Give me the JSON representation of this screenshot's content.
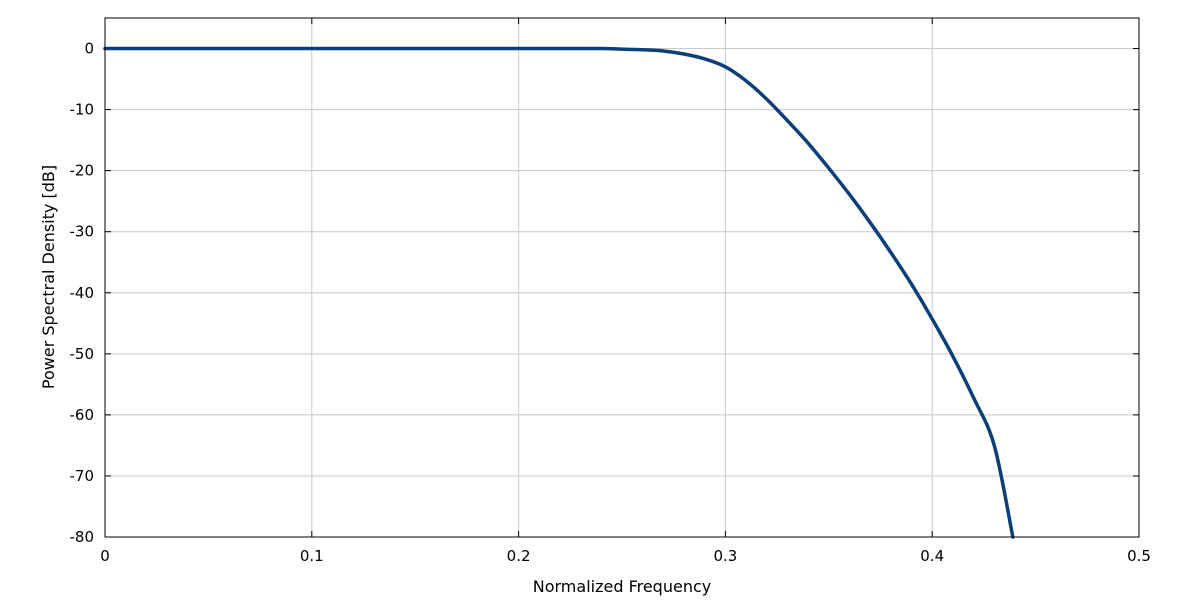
{
  "chart_data": {
    "type": "line",
    "title": "",
    "xlabel": "Normalized Frequency",
    "ylabel": "Power Spectral Density [dB]",
    "xlim": [
      0,
      0.5
    ],
    "ylim": [
      -80,
      5
    ],
    "grid": true,
    "x_ticks": [
      0,
      0.1,
      0.2,
      0.3,
      0.4,
      0.5
    ],
    "x_tick_labels": [
      "0",
      "0.1",
      "0.2",
      "0.3",
      "0.4",
      "0.5"
    ],
    "y_ticks": [
      0,
      -10,
      -20,
      -30,
      -40,
      -50,
      -60,
      -70,
      -80
    ],
    "y_tick_labels": [
      "0",
      "-10",
      "-20",
      "-30",
      "-40",
      "-50",
      "-60",
      "-70",
      "-80"
    ],
    "series": [
      {
        "color": "#0b3f7a",
        "x": [
          0,
          0.05,
          0.1,
          0.15,
          0.2,
          0.22,
          0.24,
          0.25,
          0.26,
          0.27,
          0.28,
          0.29,
          0.3,
          0.31,
          0.32,
          0.33,
          0.34,
          0.35,
          0.36,
          0.37,
          0.38,
          0.39,
          0.4,
          0.41,
          0.42,
          0.43,
          0.439
        ],
        "y": [
          0,
          0,
          0,
          0,
          0,
          0,
          0,
          -0.1,
          -0.2,
          -0.4,
          -0.9,
          -1.7,
          -3.0,
          -5.3,
          -8.3,
          -11.8,
          -15.5,
          -19.6,
          -23.9,
          -28.5,
          -33.4,
          -38.6,
          -44.3,
          -50.4,
          -57.2,
          -65.0,
          -80.0
        ]
      }
    ]
  }
}
